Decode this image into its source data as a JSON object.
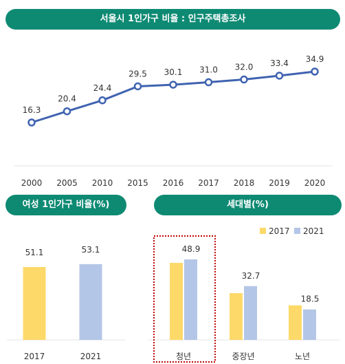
{
  "colors": {
    "header_bg": "#0e8a73",
    "line": "#3f63b0",
    "bar_2017": "#fdd96a",
    "bar_2021": "#b4c6e7",
    "highlight_box": "#c00000"
  },
  "headers": {
    "top": "서울시 1인가구 비율 : 인구주택총조사",
    "female": "여성 1인가구 비율(%)",
    "generation": "세대별(%)"
  },
  "chart_data": [
    {
      "type": "line",
      "title": "서울시 1인가구 비율 : 인구주택총조사",
      "x": [
        "2000",
        "2005",
        "2010",
        "2015",
        "2016",
        "2017",
        "2018",
        "2019",
        "2020"
      ],
      "values": [
        16.3,
        20.4,
        24.4,
        29.5,
        30.1,
        31.0,
        32.0,
        33.4,
        34.9
      ],
      "value_labels": [
        "16.3",
        "20.4",
        "24.4",
        "29.5",
        "30.1",
        "31.0",
        "32.0",
        "33.4",
        "34.9"
      ],
      "grid": false
    },
    {
      "type": "bar",
      "title": "여성 1인가구 비율(%)",
      "categories": [
        "2017",
        "2021"
      ],
      "values": [
        51.1,
        53.1
      ],
      "value_labels": [
        "51.1",
        "53.1"
      ]
    },
    {
      "type": "bar",
      "title": "세대별(%)",
      "categories": [
        "청년",
        "중장년",
        "노년"
      ],
      "series": [
        {
          "name": "2017",
          "values": [
            46.8,
            28.4,
            21.0
          ]
        },
        {
          "name": "2021",
          "values": [
            48.9,
            32.7,
            18.5
          ]
        }
      ],
      "value_labels": [
        "48.9",
        "32.7",
        "18.5"
      ],
      "legend": "top-right",
      "highlight": "청년"
    }
  ]
}
